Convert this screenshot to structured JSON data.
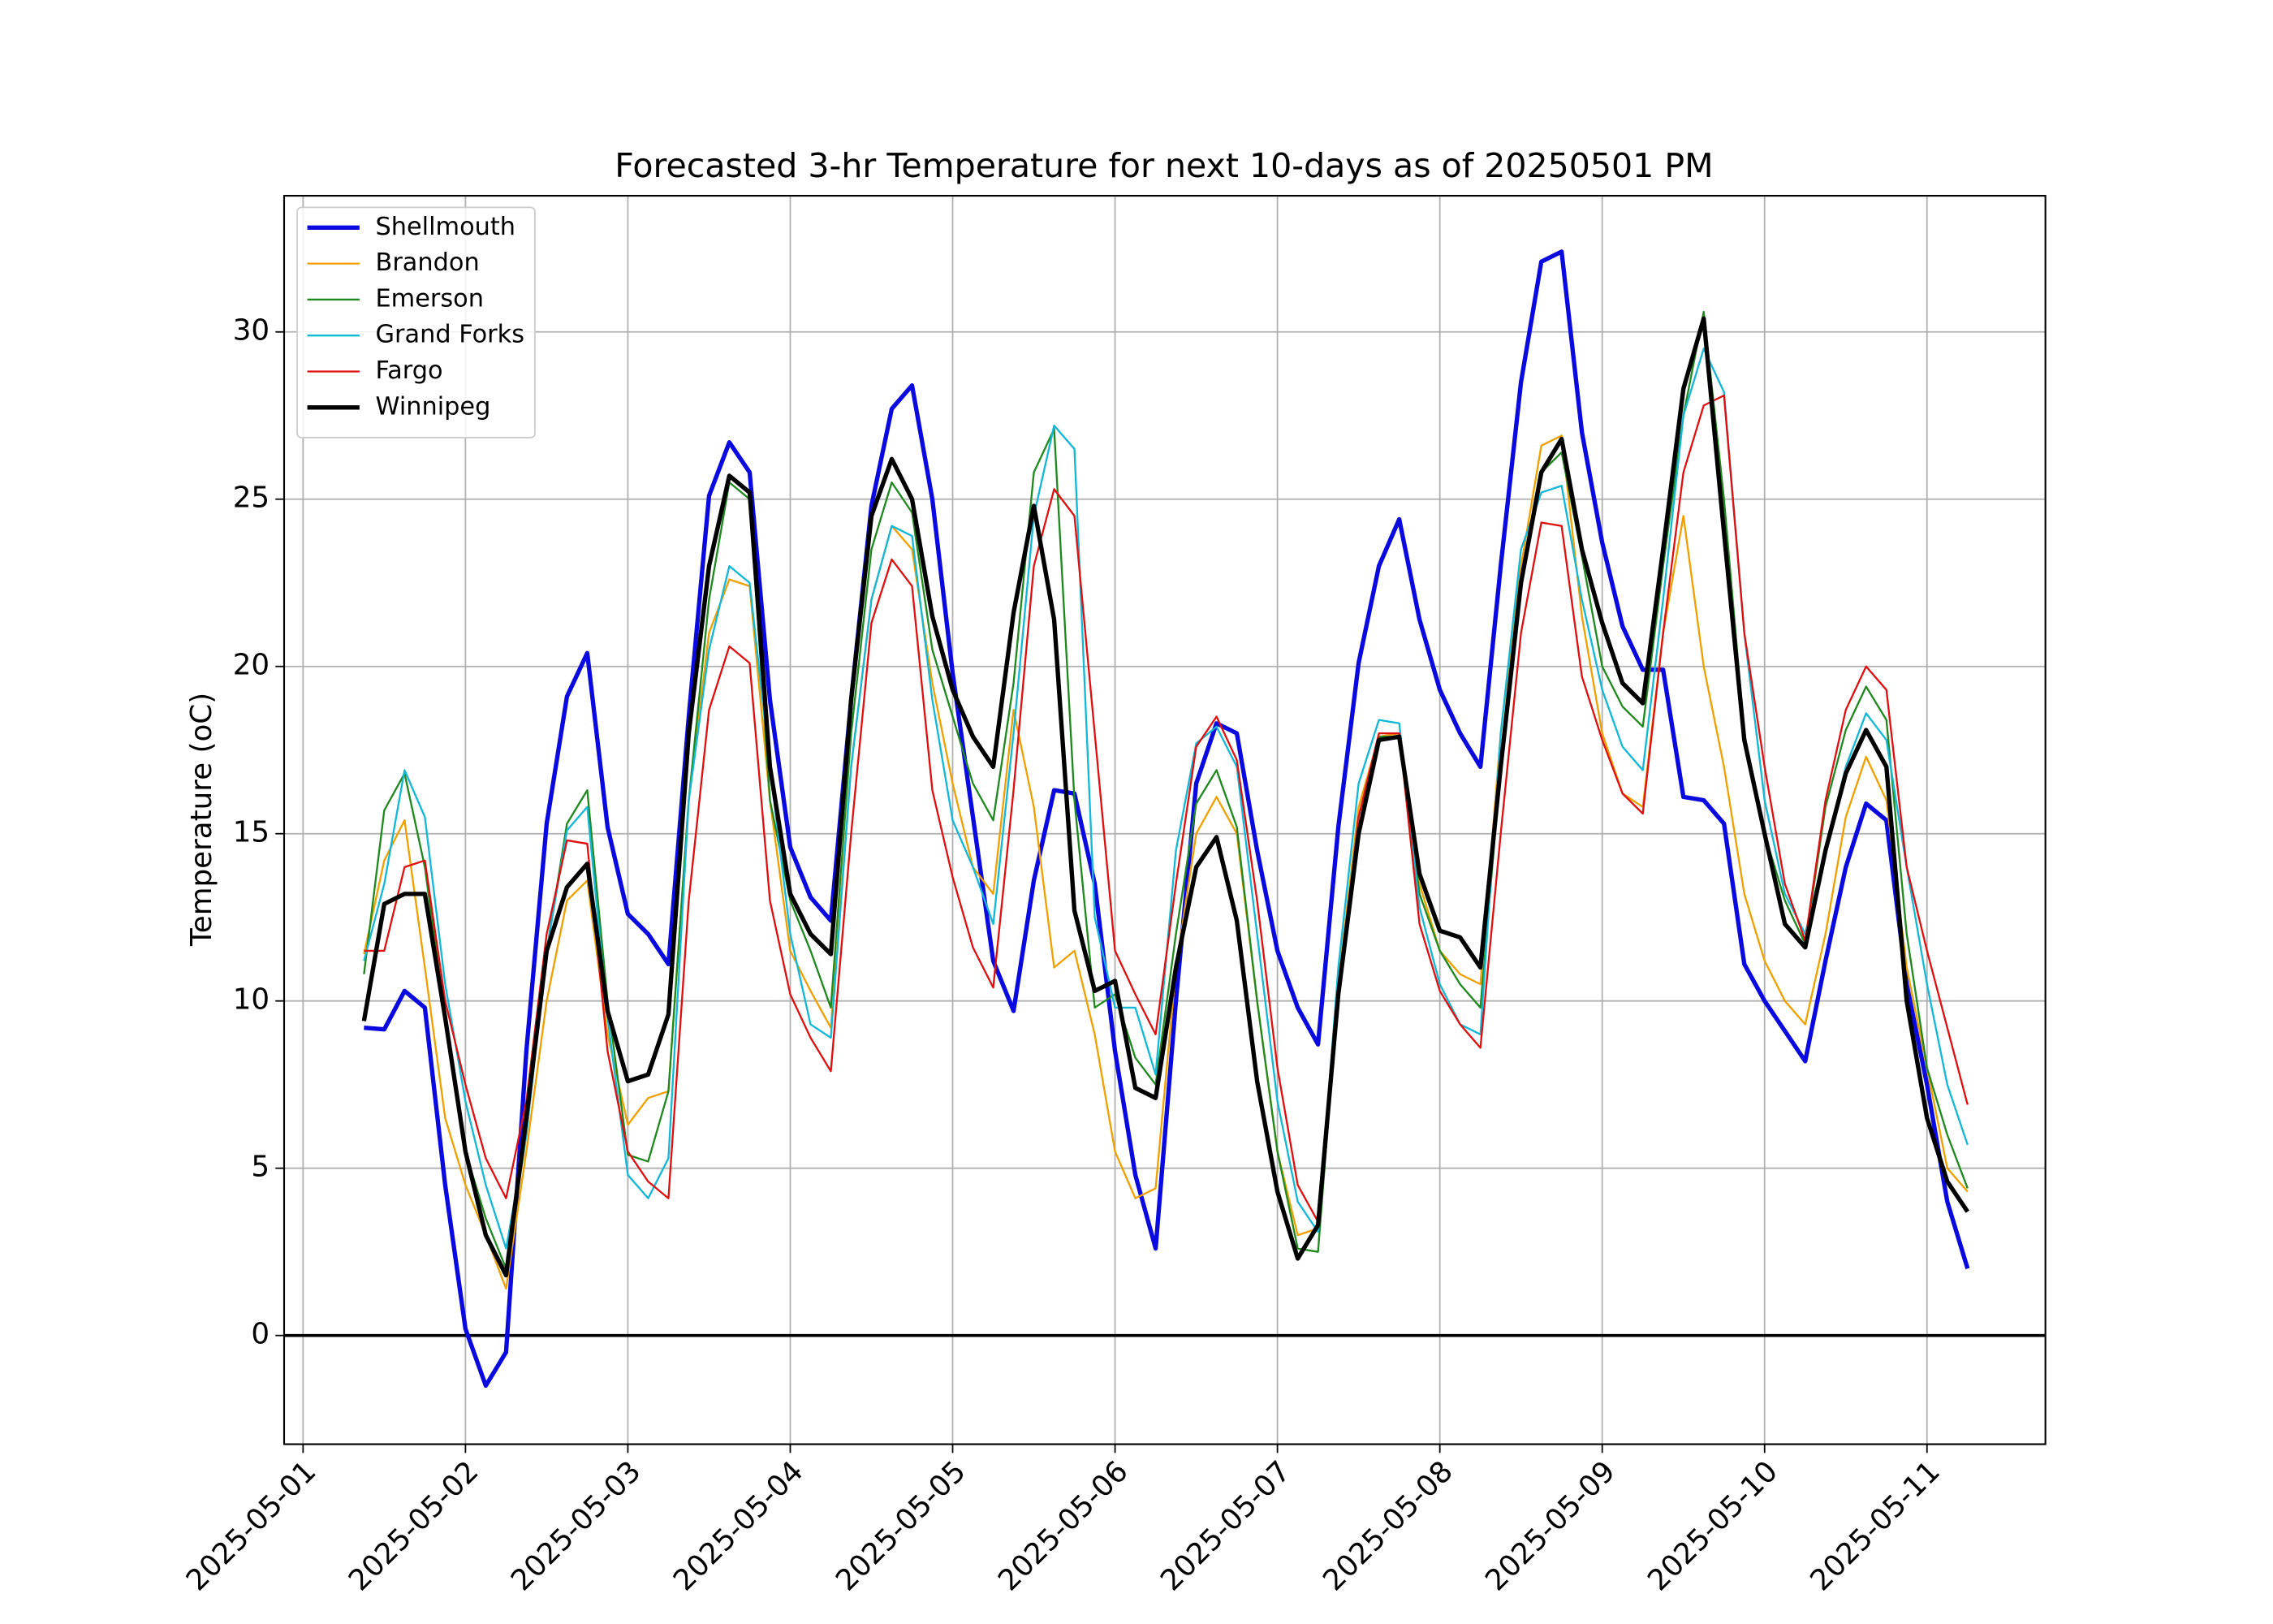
{
  "chart_data": {
    "type": "line",
    "title": "Forecasted 3-hr Temperature for next 10-days as of 20250501 PM",
    "y_label": "Temperature (oC)",
    "x": [
      "2025-05-01T09:00",
      "2025-05-01T12:00",
      "2025-05-01T15:00",
      "2025-05-01T18:00",
      "2025-05-01T21:00",
      "2025-05-02T00:00",
      "2025-05-02T03:00",
      "2025-05-02T06:00",
      "2025-05-02T09:00",
      "2025-05-02T12:00",
      "2025-05-02T15:00",
      "2025-05-02T18:00",
      "2025-05-02T21:00",
      "2025-05-03T00:00",
      "2025-05-03T03:00",
      "2025-05-03T06:00",
      "2025-05-03T09:00",
      "2025-05-03T12:00",
      "2025-05-03T15:00",
      "2025-05-03T18:00",
      "2025-05-03T21:00",
      "2025-05-04T00:00",
      "2025-05-04T03:00",
      "2025-05-04T06:00",
      "2025-05-04T09:00",
      "2025-05-04T12:00",
      "2025-05-04T15:00",
      "2025-05-04T18:00",
      "2025-05-04T21:00",
      "2025-05-05T00:00",
      "2025-05-05T03:00",
      "2025-05-05T06:00",
      "2025-05-05T09:00",
      "2025-05-05T12:00",
      "2025-05-05T15:00",
      "2025-05-05T18:00",
      "2025-05-05T21:00",
      "2025-05-06T00:00",
      "2025-05-06T03:00",
      "2025-05-06T06:00",
      "2025-05-06T09:00",
      "2025-05-06T12:00",
      "2025-05-06T15:00",
      "2025-05-06T18:00",
      "2025-05-06T21:00",
      "2025-05-07T00:00",
      "2025-05-07T03:00",
      "2025-05-07T06:00",
      "2025-05-07T09:00",
      "2025-05-07T12:00",
      "2025-05-07T15:00",
      "2025-05-07T18:00",
      "2025-05-07T21:00",
      "2025-05-08T00:00",
      "2025-05-08T03:00",
      "2025-05-08T06:00",
      "2025-05-08T09:00",
      "2025-05-08T12:00",
      "2025-05-08T15:00",
      "2025-05-08T18:00",
      "2025-05-08T21:00",
      "2025-05-09T00:00",
      "2025-05-09T03:00",
      "2025-05-09T06:00",
      "2025-05-09T09:00",
      "2025-05-09T12:00",
      "2025-05-09T15:00",
      "2025-05-09T18:00",
      "2025-05-09T21:00",
      "2025-05-10T00:00",
      "2025-05-10T03:00",
      "2025-05-10T06:00",
      "2025-05-10T09:00",
      "2025-05-10T12:00",
      "2025-05-10T15:00",
      "2025-05-10T18:00",
      "2025-05-10T21:00",
      "2025-05-11T00:00",
      "2025-05-11T03:00",
      "2025-05-11T06:00"
    ],
    "series": [
      {
        "name": "Shellmouth",
        "color": "#0a0ae0",
        "linewidth": 3,
        "values": [
          9.2,
          9.15,
          10.3,
          9.8,
          4.5,
          0.2,
          -1.5,
          -0.5,
          8.5,
          15.3,
          19.1,
          20.4,
          15.2,
          12.6,
          12.0,
          11.1,
          18.5,
          25.1,
          26.7,
          25.8,
          19,
          14.6,
          13.1,
          12.4,
          19,
          24.8,
          27.7,
          28.4,
          25,
          19.8,
          15.5,
          11.2,
          9.7,
          13.6,
          16.3,
          16.2,
          13.5,
          8.5,
          4.8,
          2.6,
          10,
          16.5,
          18.3,
          18,
          14.5,
          11.5,
          9.8,
          8.7,
          15.2,
          20.1,
          23,
          24.4,
          21.4,
          19.3,
          18,
          17,
          23,
          28.5,
          32.1,
          32.4,
          27,
          23.7,
          21.2,
          19.9,
          19.9,
          16.1,
          16.0,
          15.3,
          11.1,
          10.0,
          9.1,
          8.2,
          11.2,
          14,
          15.9,
          15.4,
          10.5,
          7.5,
          4.0,
          2.0
        ]
      },
      {
        "name": "Brandon",
        "color": "#f0a000",
        "linewidth": 1.3,
        "values": [
          11.4,
          14.2,
          15.4,
          11,
          6.5,
          4.5,
          3,
          1.4,
          5.5,
          10,
          13,
          13.6,
          9,
          6.3,
          7.1,
          7.3,
          16,
          21,
          22.6,
          22.4,
          16,
          11.5,
          10.3,
          9.2,
          17,
          22,
          24.2,
          23.5,
          19.5,
          16.5,
          14,
          13.2,
          18.7,
          15.8,
          11,
          11.5,
          9,
          5.5,
          4.1,
          4.4,
          11,
          15,
          16.1,
          15,
          10,
          5.5,
          3,
          3.2,
          10.5,
          15.8,
          17.9,
          18,
          13.5,
          11.5,
          10.8,
          10.5,
          18,
          23,
          26.6,
          26.9,
          21.5,
          18,
          16.2,
          15.8,
          21,
          24.5,
          20,
          17,
          13.2,
          11.2,
          10,
          9.3,
          12,
          15.5,
          17.3,
          16,
          11,
          8,
          5,
          4.3
        ]
      },
      {
        "name": "Emerson",
        "color": "#1e8a1e",
        "linewidth": 1.3,
        "values": [
          10.8,
          15.7,
          16.8,
          14,
          9.5,
          5.5,
          3.5,
          2.0,
          6,
          11.5,
          15.3,
          16.3,
          10,
          5.4,
          5.2,
          7.3,
          16,
          22,
          25.5,
          25,
          16,
          13,
          11.5,
          9.8,
          18,
          23.5,
          25.5,
          24.6,
          20.5,
          18.5,
          16.5,
          15.4,
          19.5,
          25.8,
          27.1,
          16,
          9.8,
          10.2,
          8.3,
          7.5,
          12,
          15.9,
          16.9,
          15.2,
          10,
          5.5,
          2.6,
          2.5,
          10.3,
          15.5,
          17.9,
          17.9,
          13.2,
          11.5,
          10.5,
          9.8,
          17,
          22.5,
          25.8,
          26.4,
          23.3,
          20,
          18.8,
          18.2,
          23,
          27.5,
          30.6,
          25,
          18,
          15,
          13,
          11.7,
          15.8,
          18.1,
          19.4,
          18.4,
          12,
          8,
          6,
          4.4
        ]
      },
      {
        "name": "Grand Forks",
        "color": "#12b8d8",
        "linewidth": 1.3,
        "values": [
          11.2,
          13.5,
          16.9,
          15.5,
          10.5,
          7,
          4.5,
          2.6,
          6,
          11.5,
          15.1,
          15.8,
          9.5,
          4.8,
          4.1,
          5.3,
          16,
          20.5,
          23,
          22.5,
          17,
          12,
          9.3,
          8.9,
          17,
          22,
          24.2,
          23.9,
          19,
          15.4,
          14,
          12.3,
          18,
          24.5,
          27.2,
          26.5,
          12.5,
          9.8,
          9.8,
          7.8,
          14.5,
          17.7,
          18.2,
          17,
          12,
          7,
          4,
          3.1,
          11,
          16.5,
          18.4,
          18.3,
          12.8,
          10.5,
          9.3,
          9,
          18,
          23.5,
          25.2,
          25.4,
          22,
          19.3,
          17.6,
          16.9,
          22,
          27.5,
          29.5,
          28.2,
          21,
          16,
          13.2,
          12,
          14.5,
          17,
          18.6,
          17.8,
          14,
          10.5,
          7.5,
          5.7
        ]
      },
      {
        "name": "Fargo",
        "color": "#e01010",
        "linewidth": 1.3,
        "values": [
          11.5,
          11.5,
          14,
          14.2,
          10,
          7.5,
          5.3,
          4.1,
          7,
          12,
          14.8,
          14.7,
          8.5,
          5.5,
          4.6,
          4.1,
          13,
          18.7,
          20.6,
          20.1,
          13,
          10.2,
          8.9,
          7.9,
          15,
          21.3,
          23.2,
          22.4,
          16.3,
          13.7,
          11.6,
          10.4,
          16.3,
          23,
          25.3,
          24.5,
          18,
          11.5,
          10.2,
          9,
          13.5,
          17.6,
          18.5,
          17.2,
          13,
          8,
          4.5,
          3.4,
          10,
          15.5,
          18,
          18,
          12.3,
          10.3,
          9.3,
          8.6,
          15,
          21,
          24.3,
          24.2,
          19.7,
          17.8,
          16.2,
          15.6,
          21,
          25.8,
          27.8,
          28.1,
          21,
          17,
          13.5,
          11.8,
          16,
          18.7,
          20,
          19.3,
          14,
          11.5,
          9.2,
          6.9
        ]
      },
      {
        "name": "Winnipeg",
        "color": "#000000",
        "linewidth": 3,
        "values": [
          9.4,
          12.9,
          13.2,
          13.2,
          9.5,
          5.5,
          3.0,
          1.8,
          6.5,
          11.5,
          13.4,
          14.1,
          9.7,
          7.6,
          7.8,
          9.6,
          18,
          23,
          25.7,
          25.2,
          17,
          13.2,
          12,
          11.4,
          19,
          24.5,
          26.2,
          25,
          21.5,
          19.3,
          17.9,
          17,
          21.6,
          24.8,
          21.4,
          12.7,
          10.3,
          10.6,
          7.4,
          7.1,
          11,
          14,
          14.9,
          12.4,
          7.6,
          4.3,
          2.3,
          3.3,
          10.2,
          15,
          17.8,
          17.9,
          13.8,
          12.1,
          11.9,
          11.0,
          17,
          22.5,
          25.8,
          26.8,
          23.5,
          21.3,
          19.5,
          18.9,
          23.5,
          28.3,
          30.4,
          24,
          17.8,
          15,
          12.3,
          11.6,
          14.5,
          16.8,
          18.1,
          17,
          10,
          6.5,
          4.6,
          3.7
        ]
      }
    ],
    "xlim": [
      "2025-04-30T21:12",
      "2025-05-11T17:30"
    ],
    "xticks": [
      "2025-05-01",
      "2025-05-02",
      "2025-05-03",
      "2025-05-04",
      "2025-05-05",
      "2025-05-06",
      "2025-05-07",
      "2025-05-08",
      "2025-05-09",
      "2025-05-10",
      "2025-05-11"
    ],
    "ylim": [
      -3.25,
      34.07
    ],
    "yticks": [
      0,
      5,
      10,
      15,
      20,
      25,
      30
    ],
    "hlines": [
      0
    ],
    "grid": true,
    "legend": "upper left"
  }
}
